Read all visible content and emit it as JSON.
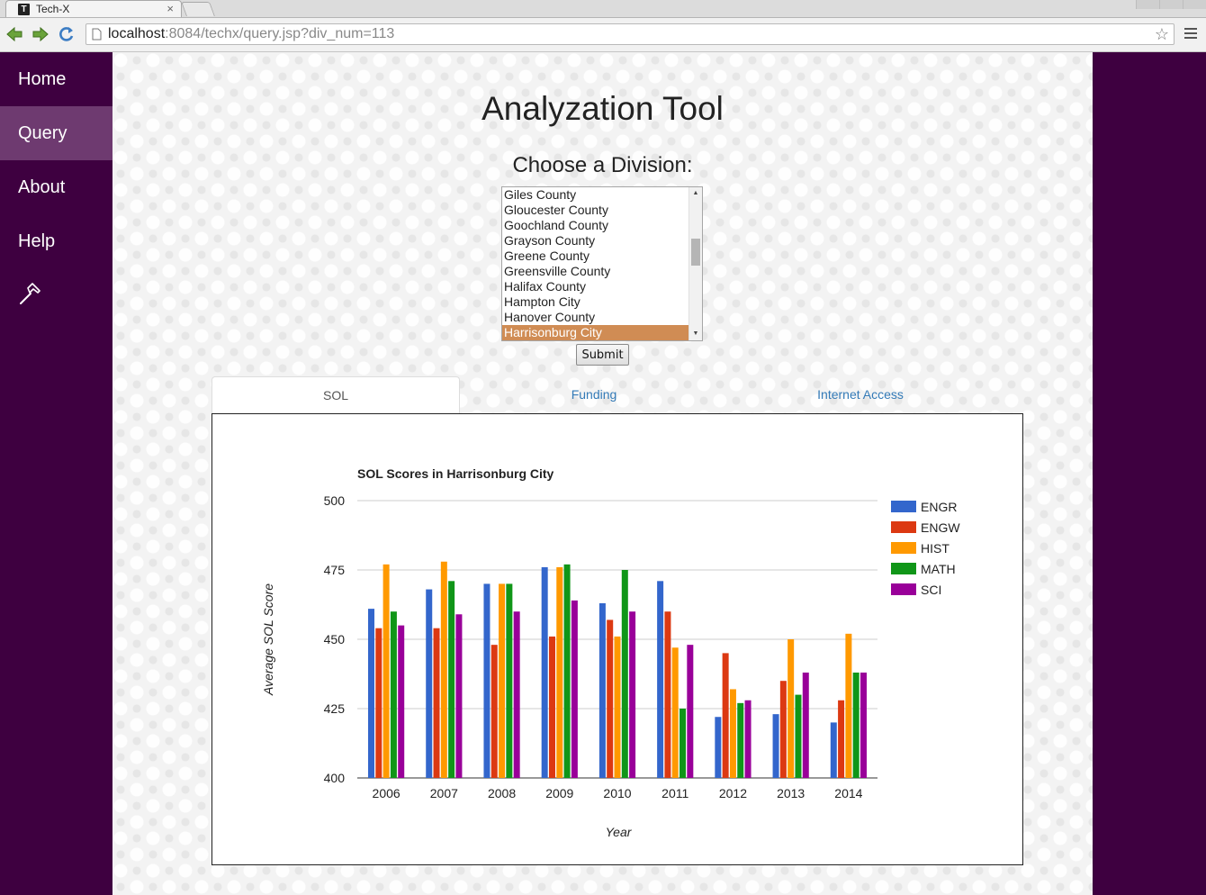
{
  "browser": {
    "tab_title": "Tech-X",
    "favicon_letter": "T",
    "tab_close": "×",
    "url_host": "localhost",
    "url_rest": ":8084/techx/query.jsp?div_num=113",
    "bookmark_icon": "☆"
  },
  "sidebar": {
    "items": [
      {
        "label": "Home"
      },
      {
        "label": "Query",
        "active": true
      },
      {
        "label": "About"
      },
      {
        "label": "Help"
      }
    ],
    "tool_icon": "hammer-icon"
  },
  "main": {
    "title": "Analyzation Tool",
    "choose_label": "Choose a Division:",
    "divisions": [
      "Giles County",
      "Gloucester County",
      "Goochland County",
      "Grayson County",
      "Greene County",
      "Greensville County",
      "Halifax County",
      "Hampton City",
      "Hanover County",
      "Harrisonburg City"
    ],
    "selected_division": "Harrisonburg City",
    "submit_label": "Submit",
    "tabs": [
      {
        "label": "SOL",
        "active": true
      },
      {
        "label": "Funding"
      },
      {
        "label": "Internet Access"
      }
    ]
  },
  "colors": {
    "sidebar_bg": "#3e0040",
    "sidebar_active": "#6e3a70",
    "selected_option": "#d08c54",
    "link": "#337ab7"
  },
  "chart_data": {
    "type": "bar",
    "title": "SOL Scores in Harrisonburg City",
    "xlabel": "Year",
    "ylabel": "Average SOL Score",
    "ylim": [
      400,
      500
    ],
    "yticks": [
      400,
      425,
      450,
      475,
      500
    ],
    "grid": true,
    "legend_position": "right",
    "categories": [
      "2006",
      "2007",
      "2008",
      "2009",
      "2010",
      "2011",
      "2012",
      "2013",
      "2014"
    ],
    "series": [
      {
        "name": "ENGR",
        "color": "#3366cc",
        "values": [
          461,
          468,
          470,
          476,
          463,
          471,
          422,
          423,
          420
        ]
      },
      {
        "name": "ENGW",
        "color": "#dc3912",
        "values": [
          454,
          454,
          448,
          451,
          457,
          460,
          445,
          435,
          428
        ]
      },
      {
        "name": "HIST",
        "color": "#ff9900",
        "values": [
          477,
          478,
          470,
          476,
          451,
          447,
          432,
          450,
          452
        ]
      },
      {
        "name": "MATH",
        "color": "#109618",
        "values": [
          460,
          471,
          470,
          477,
          475,
          425,
          427,
          430,
          438
        ]
      },
      {
        "name": "SCI",
        "color": "#990099",
        "values": [
          455,
          459,
          460,
          464,
          460,
          448,
          428,
          438,
          438
        ]
      }
    ]
  }
}
